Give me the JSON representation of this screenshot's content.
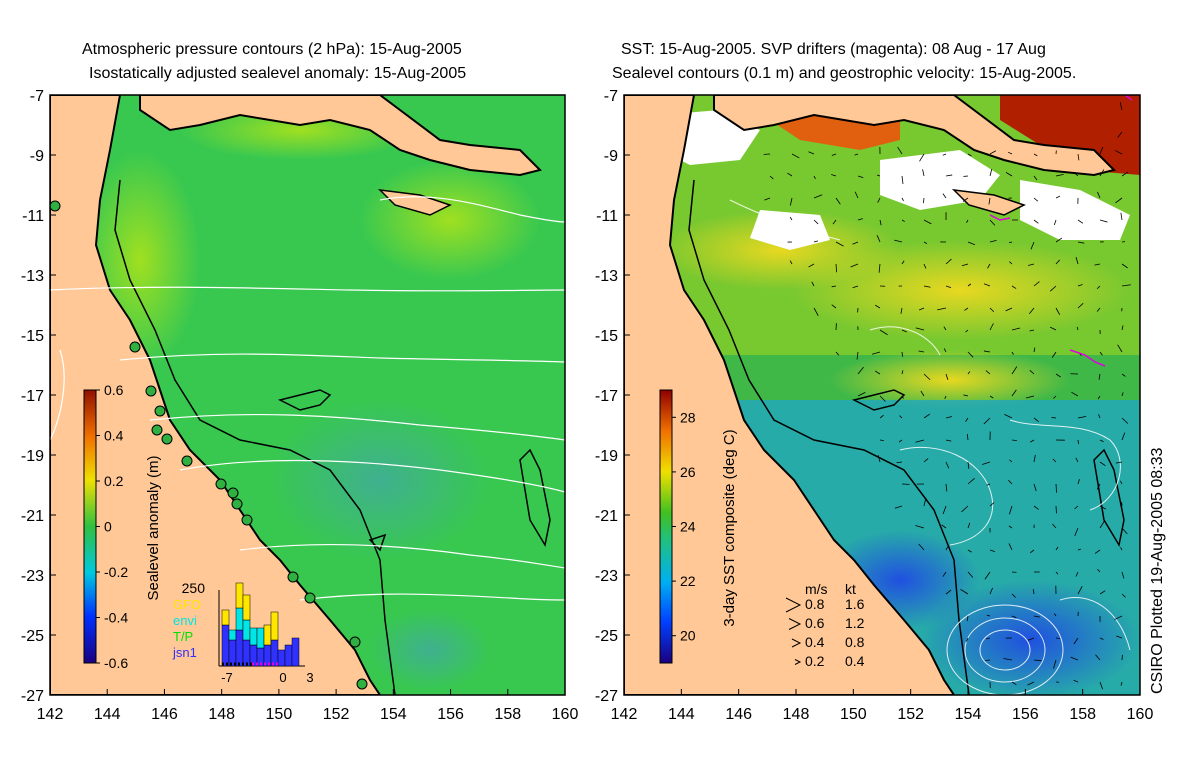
{
  "left_panel": {
    "title_line1": "Atmospheric pressure contours (2 hPa): 15-Aug-2005",
    "title_line2": "Isostatically adjusted sealevel anomaly: 15-Aug-2005",
    "y_ticks": [
      "-7",
      "-9",
      "-11",
      "-13",
      "-15",
      "-17",
      "-19",
      "-21",
      "-23",
      "-25",
      "-27"
    ],
    "x_ticks": [
      "142",
      "144",
      "146",
      "148",
      "150",
      "152",
      "154",
      "156",
      "158",
      "160"
    ],
    "colorbar": {
      "label": "Sealevel anomaly (m)",
      "ticks": [
        "0.6",
        "0.4",
        "0.2",
        "0",
        "-0.2",
        "-0.4",
        "-0.6"
      ],
      "range": [
        -0.6,
        0.6
      ]
    },
    "histogram": {
      "ymax_label": "250",
      "legend": [
        {
          "label": "GFO",
          "color": "#ffe600"
        },
        {
          "label": "envi",
          "color": "#00e5e5"
        },
        {
          "label": "T/P",
          "color": "#00e000"
        },
        {
          "label": "jsn1",
          "color": "#3030ff"
        }
      ],
      "x_ticks": [
        "-7",
        "0",
        "3"
      ]
    }
  },
  "right_panel": {
    "title_line1": "SST: 15-Aug-2005. SVP drifters (magenta): 08 Aug - 17 Aug",
    "title_line2": "Sealevel contours (0.1 m) and geostrophic velocity: 15-Aug-2005.",
    "y_ticks": [
      "-7",
      "-9",
      "-11",
      "-13",
      "-15",
      "-17",
      "-19",
      "-21",
      "-23",
      "-25",
      "-27"
    ],
    "x_ticks": [
      "142",
      "144",
      "146",
      "148",
      "150",
      "152",
      "154",
      "156",
      "158",
      "160"
    ],
    "colorbar": {
      "label": "3-day SST composite (deg C)",
      "ticks": [
        "28",
        "26",
        "24",
        "22",
        "20"
      ],
      "range": [
        19,
        29
      ]
    },
    "velocity_legend": {
      "header_ms": "m/s",
      "header_kt": "kt",
      "rows": [
        {
          "ms": "0.8",
          "kt": "1.6"
        },
        {
          "ms": "0.6",
          "kt": "1.2"
        },
        {
          "ms": "0.4",
          "kt": "0.8"
        },
        {
          "ms": "0.2",
          "kt": "0.4"
        }
      ]
    }
  },
  "credit": "CSIRO Plotted 19-Aug-2005 08:33",
  "colors": {
    "land": "#ffc896",
    "ocean_left": "#38c850",
    "ocean_right": "#2ca060",
    "contour": "#ffffff",
    "coast": "#000000"
  }
}
